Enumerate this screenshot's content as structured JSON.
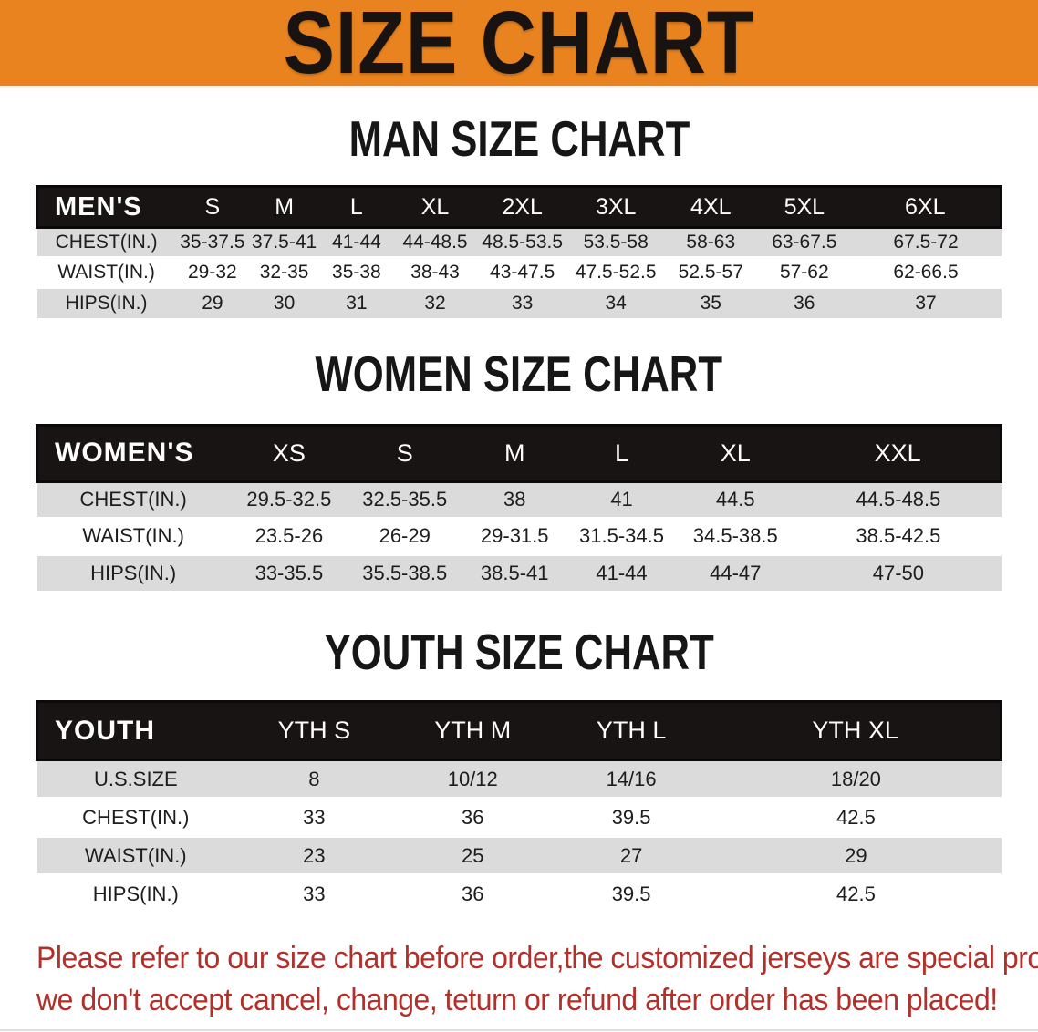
{
  "banner": {
    "title": "SIZE CHART",
    "bg_color": "#E8831F",
    "text_color": "#181310"
  },
  "colors": {
    "table_header_bg": "#181414",
    "row_stripe": "#DBDBDB",
    "note_red": "#B2302A"
  },
  "tables": [
    {
      "id": "men",
      "heading": "MAN SIZE CHART",
      "group_label": "MEN'S",
      "columns": [
        "S",
        "M",
        "L",
        "XL",
        "2XL",
        "3XL",
        "4XL",
        "5XL",
        "6XL"
      ],
      "rows": [
        {
          "label": "CHEST(IN.)",
          "values": [
            "35-37.5",
            "37.5-41",
            "41-44",
            "44-48.5",
            "48.5-53.5",
            "53.5-58",
            "58-63",
            "63-67.5",
            "67.5-72"
          ]
        },
        {
          "label": "WAIST(IN.)",
          "values": [
            "29-32",
            "32-35",
            "35-38",
            "38-43",
            "43-47.5",
            "47.5-52.5",
            "52.5-57",
            "57-62",
            "62-66.5"
          ]
        },
        {
          "label": "HIPS(IN.)",
          "values": [
            "29",
            "30",
            "31",
            "32",
            "33",
            "34",
            "35",
            "36",
            "37"
          ]
        }
      ]
    },
    {
      "id": "women",
      "heading": "WOMEN SIZE CHART",
      "group_label": "WOMEN'S",
      "columns": [
        "XS",
        "S",
        "M",
        "L",
        "XL",
        "XXL"
      ],
      "rows": [
        {
          "label": "CHEST(IN.)",
          "values": [
            "29.5-32.5",
            "32.5-35.5",
            "38",
            "41",
            "44.5",
            "44.5-48.5"
          ]
        },
        {
          "label": "WAIST(IN.)",
          "values": [
            "23.5-26",
            "26-29",
            "29-31.5",
            "31.5-34.5",
            "34.5-38.5",
            "38.5-42.5"
          ]
        },
        {
          "label": "HIPS(IN.)",
          "values": [
            "33-35.5",
            "35.5-38.5",
            "38.5-41",
            "41-44",
            "44-47",
            "47-50"
          ]
        }
      ]
    },
    {
      "id": "youth",
      "heading": "YOUTH SIZE CHART",
      "group_label": "YOUTH",
      "columns": [
        "YTH S",
        "YTH M",
        "YTH L",
        "YTH XL"
      ],
      "rows": [
        {
          "label": "U.S.SIZE",
          "values": [
            "8",
            "10/12",
            "14/16",
            "18/20"
          ]
        },
        {
          "label": "CHEST(IN.)",
          "values": [
            "33",
            "36",
            "39.5",
            "42.5"
          ]
        },
        {
          "label": "WAIST(IN.)",
          "values": [
            "23",
            "25",
            "27",
            "29"
          ]
        },
        {
          "label": "HIPS(IN.)",
          "values": [
            "33",
            "36",
            "39.5",
            "42.5"
          ]
        }
      ]
    }
  ],
  "note": {
    "line1": "Please refer to our size chart before order,the customized jerseys are special products,",
    "line2": "we don't accept cancel, change, teturn or refund after order has been placed!"
  }
}
